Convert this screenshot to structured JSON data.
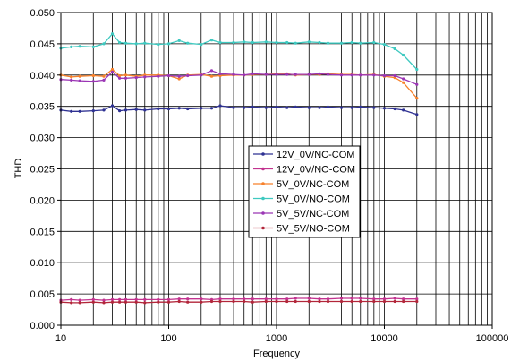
{
  "chart_data": {
    "type": "line",
    "xlabel": "Frequency",
    "ylabel": "THD",
    "xscale": "log",
    "xlim": [
      10,
      100000
    ],
    "ylim": [
      0,
      0.05
    ],
    "grid": true,
    "legend_position": "center",
    "x_tick_labels": [
      "10",
      "100",
      "1000",
      "10000",
      "100000"
    ],
    "y_tick_labels": [
      "0.000",
      "0.005",
      "0.010",
      "0.015",
      "0.020",
      "0.025",
      "0.030",
      "0.035",
      "0.040",
      "0.045",
      "0.050"
    ],
    "x": [
      10,
      12.5,
      15,
      20,
      25,
      30,
      35,
      40,
      50,
      60,
      80,
      100,
      125,
      150,
      200,
      250,
      300,
      400,
      500,
      600,
      800,
      1000,
      1250,
      1500,
      2000,
      2500,
      3000,
      4000,
      5000,
      6000,
      8000,
      10000,
      12500,
      15000,
      20000
    ],
    "series": [
      {
        "name": "12V_0V/NC-COM",
        "color": "#2e3192",
        "values": [
          0.0344,
          0.0342,
          0.0342,
          0.0343,
          0.0344,
          0.0351,
          0.0343,
          0.0344,
          0.0345,
          0.0344,
          0.0346,
          0.0346,
          0.0347,
          0.0346,
          0.0347,
          0.0347,
          0.0351,
          0.0348,
          0.0348,
          0.0349,
          0.0348,
          0.0349,
          0.0348,
          0.0349,
          0.0348,
          0.0348,
          0.0349,
          0.0348,
          0.0348,
          0.0349,
          0.0348,
          0.0347,
          0.0346,
          0.0344,
          0.0337
        ]
      },
      {
        "name": "12V_0V/NO-COM",
        "color": "#c2338f",
        "values": [
          0.004,
          0.0041,
          0.004,
          0.0041,
          0.004,
          0.0041,
          0.0041,
          0.0041,
          0.0041,
          0.0041,
          0.0041,
          0.0041,
          0.0042,
          0.0042,
          0.0042,
          0.0041,
          0.0042,
          0.0042,
          0.0042,
          0.0042,
          0.0042,
          0.0042,
          0.0042,
          0.0043,
          0.0043,
          0.0042,
          0.0042,
          0.0043,
          0.0043,
          0.0043,
          0.0042,
          0.0042,
          0.0043,
          0.0042,
          0.0042
        ]
      },
      {
        "name": "5V_0V/NC-COM",
        "color": "#f7812b",
        "values": [
          0.04,
          0.0397,
          0.0398,
          0.0399,
          0.0398,
          0.0409,
          0.0399,
          0.04,
          0.0398,
          0.04,
          0.04,
          0.0399,
          0.0394,
          0.04,
          0.0401,
          0.0398,
          0.0399,
          0.04,
          0.04,
          0.0401,
          0.0401,
          0.0402,
          0.0402,
          0.04,
          0.0401,
          0.0401,
          0.0402,
          0.0401,
          0.0401,
          0.04,
          0.0401,
          0.0398,
          0.0396,
          0.0388,
          0.0363
        ]
      },
      {
        "name": "5V_0V/NO-COM",
        "color": "#3fc9c0",
        "values": [
          0.0443,
          0.0445,
          0.0446,
          0.0445,
          0.045,
          0.0466,
          0.0452,
          0.0451,
          0.045,
          0.0451,
          0.0449,
          0.045,
          0.0455,
          0.0451,
          0.0449,
          0.0456,
          0.0452,
          0.0452,
          0.0453,
          0.0452,
          0.0453,
          0.0452,
          0.0452,
          0.0451,
          0.0453,
          0.0452,
          0.0451,
          0.0451,
          0.0452,
          0.0451,
          0.0452,
          0.0449,
          0.0442,
          0.0432,
          0.0409
        ]
      },
      {
        "name": "5V_5V/NC-COM",
        "color": "#9b36b5",
        "values": [
          0.0393,
          0.0392,
          0.0391,
          0.039,
          0.0392,
          0.0405,
          0.0395,
          0.0395,
          0.0396,
          0.0397,
          0.0398,
          0.0399,
          0.0398,
          0.0399,
          0.04,
          0.0407,
          0.0402,
          0.0401,
          0.04,
          0.0402,
          0.0401,
          0.0401,
          0.0401,
          0.0401,
          0.0401,
          0.0402,
          0.0401,
          0.04,
          0.04,
          0.04,
          0.04,
          0.0399,
          0.0399,
          0.0394,
          0.0385
        ]
      },
      {
        "name": "5V_5V/NO-COM",
        "color": "#b2263a",
        "values": [
          0.0037,
          0.0036,
          0.0036,
          0.0037,
          0.0036,
          0.0037,
          0.0037,
          0.0037,
          0.0037,
          0.0036,
          0.0037,
          0.0037,
          0.0038,
          0.0037,
          0.0037,
          0.0038,
          0.0038,
          0.0038,
          0.0038,
          0.0037,
          0.0038,
          0.0038,
          0.0038,
          0.0038,
          0.0038,
          0.0038,
          0.0038,
          0.0038,
          0.0038,
          0.0038,
          0.0038,
          0.0038,
          0.0038,
          0.0038,
          0.0038
        ]
      }
    ]
  }
}
